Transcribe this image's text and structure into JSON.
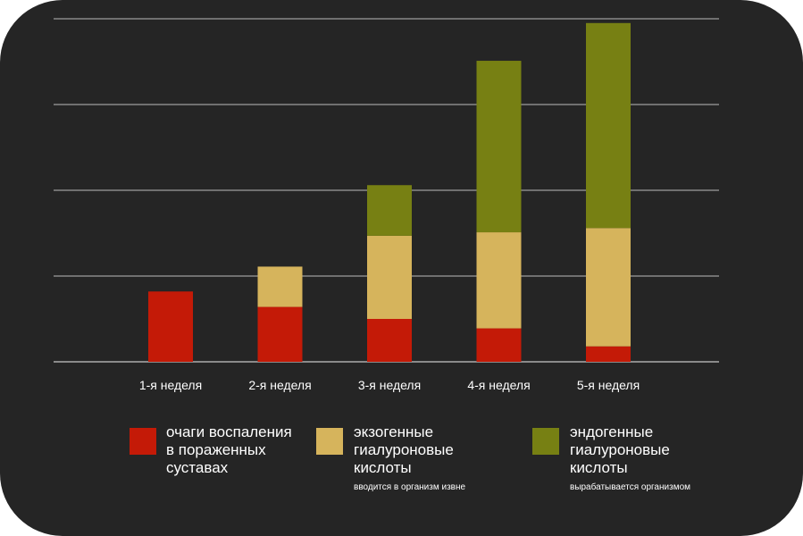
{
  "chart_data": {
    "type": "bar",
    "stacked": true,
    "categories": [
      "1-я неделя",
      "2-я неделя",
      "3-я неделя",
      "4-я неделя",
      "5-я неделя"
    ],
    "series": [
      {
        "name": "очаги воспаления\nв пораженных\nсуставах",
        "color": "#c41a07",
        "values": [
          0.82,
          0.64,
          0.5,
          0.39,
          0.18
        ]
      },
      {
        "name": "экзогенные\nгиалуроновые\nкислоты",
        "color": "#d6b45c",
        "values": [
          0,
          0.47,
          0.97,
          1.12,
          1.38
        ]
      },
      {
        "name": "эндогенные\nгиалуроновые\nкислоты",
        "color": "#778013",
        "values": [
          0,
          0,
          0.59,
          2.0,
          2.39
        ]
      }
    ],
    "ylim": [
      0,
      4
    ],
    "grid": true,
    "legend_position": "bottom"
  },
  "legend": [
    {
      "label": "очаги воспаления\nв пораженных\nсуставах",
      "note": "",
      "color": "#c41a07"
    },
    {
      "label": "экзогенные\nгиалуроновые\nкислоты",
      "note": "вводится в организм извне",
      "color": "#d6b45c"
    },
    {
      "label": "эндогенные\nгиалуроновые\nкислоты",
      "note": "вырабатывается организмом",
      "color": "#778013"
    }
  ],
  "colors": {
    "background": "#252525",
    "grid": "#8a8a8a",
    "text": "#ffffff"
  }
}
